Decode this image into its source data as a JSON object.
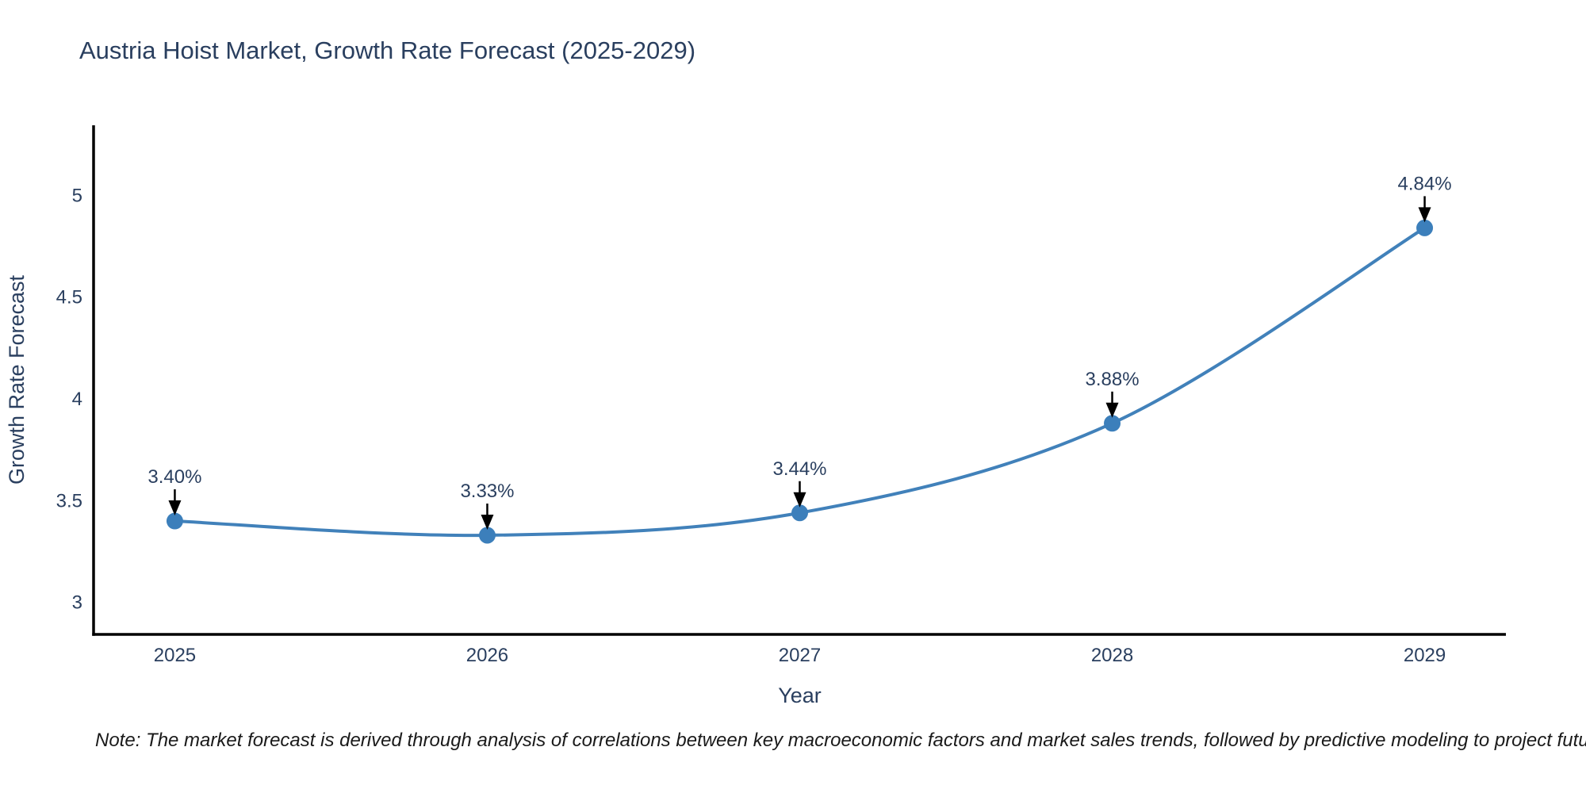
{
  "title": {
    "text": "Austria Hoist Market, Growth Rate Forecast (2025-2029)",
    "color": "#2a3f5f"
  },
  "note": {
    "text": "Note: The market forecast is derived through analysis of correlations between key macroeconomic factors and market sales trends, followed by predictive modeling to project future sales"
  },
  "chart_data": {
    "type": "line",
    "title": "Austria Hoist Market, Growth Rate Forecast (2025-2029)",
    "xlabel": "Year",
    "ylabel": "Growth Rate Forecast",
    "x": [
      2025,
      2026,
      2027,
      2028,
      2029
    ],
    "values": [
      3.4,
      3.33,
      3.44,
      3.88,
      4.84
    ],
    "point_labels": [
      "3.40%",
      "3.33%",
      "3.44%",
      "3.88%",
      "4.84%"
    ],
    "xtick_labels": [
      "2025",
      "2026",
      "2027",
      "2028",
      "2029"
    ],
    "yticks": [
      3,
      3.5,
      4,
      4.5,
      5
    ],
    "ytick_labels": [
      "3",
      "3.5",
      "4",
      "4.5",
      "5"
    ],
    "xlim": [
      2024.74,
      2029.26
    ],
    "ylim": [
      2.843,
      5.344
    ],
    "grid": false,
    "legend": "none",
    "line_color": "#4181ba",
    "marker_color": "#3c7fbb",
    "axis_color": "#000000",
    "label_color": "#2a3f5f",
    "annotation_color": "#2a3f5f",
    "arrow_color": "#000000"
  }
}
